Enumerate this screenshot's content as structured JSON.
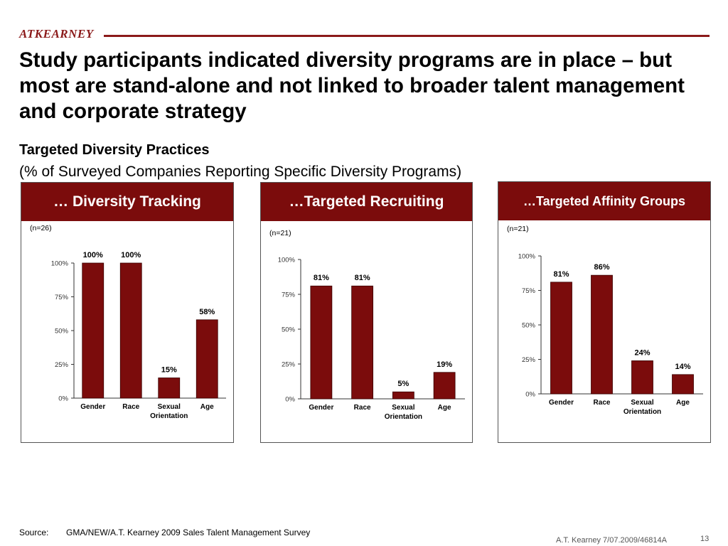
{
  "header": {
    "logo": "ATKEARNEY",
    "title": "Study participants indicated diversity programs are in place – but most are stand-alone and not linked to broader talent management and corporate strategy",
    "subtitle": "Targeted Diversity Practices",
    "subtitle2": "(% of Surveyed Companies Reporting Specific Diversity Programs)"
  },
  "colors": {
    "accent": "#7b0c0c",
    "bar": "#7b0c0c"
  },
  "panels": [
    {
      "title": "… Diversity Tracking"
    },
    {
      "title": "…Targeted Recruiting"
    },
    {
      "title": "…Targeted Affinity Groups"
    }
  ],
  "chart_data": [
    {
      "type": "bar",
      "title": "… Diversity Tracking",
      "n_label": "(n=26)",
      "categories": [
        "Gender",
        "Race",
        "Sexual Orientation",
        "Age"
      ],
      "values": [
        100,
        100,
        15,
        58
      ],
      "value_labels": [
        "100%",
        "100%",
        "15%",
        "58%"
      ],
      "ticks": [
        "0%",
        "25%",
        "50%",
        "75%",
        "100%"
      ],
      "ylim": [
        0,
        100
      ]
    },
    {
      "type": "bar",
      "title": "…Targeted Recruiting",
      "n_label": "(n=21)",
      "categories": [
        "Gender",
        "Race",
        "Sexual Orientation",
        "Age"
      ],
      "values": [
        81,
        81,
        5,
        19
      ],
      "value_labels": [
        "81%",
        "81%",
        "5%",
        "19%"
      ],
      "ticks": [
        "0%",
        "25%",
        "50%",
        "75%",
        "100%"
      ],
      "ylim": [
        0,
        100
      ]
    },
    {
      "type": "bar",
      "title": "…Targeted Affinity Groups",
      "n_label": "(n=21)",
      "categories": [
        "Gender",
        "Race",
        "Sexual Orientation",
        "Age"
      ],
      "values": [
        81,
        86,
        24,
        14
      ],
      "value_labels": [
        "81%",
        "86%",
        "24%",
        "14%"
      ],
      "ticks": [
        "0%",
        "25%",
        "50%",
        "75%",
        "100%"
      ],
      "ylim": [
        0,
        100
      ]
    }
  ],
  "source": {
    "label": "Source:",
    "text": "GMA/NEW/A.T. Kearney 2009 Sales Talent Management Survey"
  },
  "footer": {
    "text": "A.T. Kearney 7/07.2009/46814A",
    "page": "13"
  }
}
